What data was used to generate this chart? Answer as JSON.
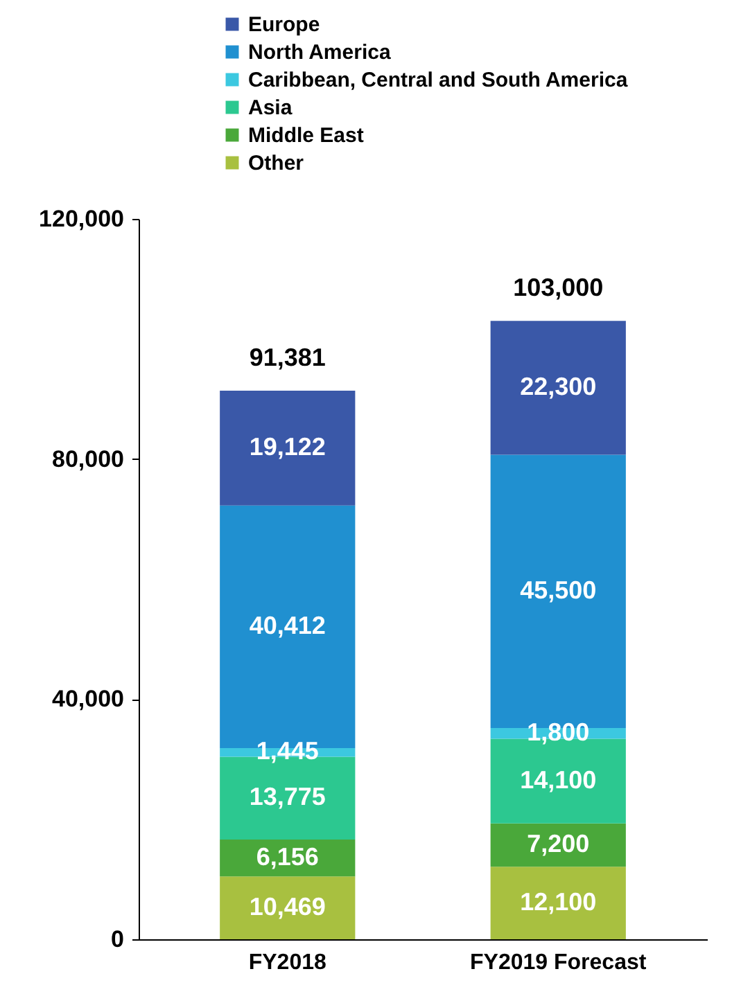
{
  "chart_data": {
    "type": "bar",
    "stacked": true,
    "categories": [
      "FY2018",
      "FY2019 Forecast"
    ],
    "series": [
      {
        "name": "Other",
        "color": "#a8c040",
        "values": [
          10469,
          12100
        ],
        "value_labels": [
          "10,469",
          "12,100"
        ]
      },
      {
        "name": "Middle East",
        "color": "#4aa83a",
        "values": [
          6156,
          7200
        ],
        "value_labels": [
          "6,156",
          "7,200"
        ]
      },
      {
        "name": "Asia",
        "color": "#2cc890",
        "values": [
          13775,
          14100
        ],
        "value_labels": [
          "13,775",
          "14,100"
        ]
      },
      {
        "name": "Caribbean, Central and South America",
        "color": "#3cc8e0",
        "values": [
          1445,
          1800
        ],
        "value_labels": [
          "1,445",
          "1,800"
        ]
      },
      {
        "name": "North America",
        "color": "#2090d0",
        "values": [
          40412,
          45500
        ],
        "value_labels": [
          "40,412",
          "45,500"
        ]
      },
      {
        "name": "Europe",
        "color": "#3a58a8",
        "values": [
          19122,
          22300
        ],
        "value_labels": [
          "19,122",
          "22,300"
        ]
      }
    ],
    "ylim": [
      0,
      120000
    ],
    "yticks": [
      0,
      {
        "value": 40000,
        "label": "40,000"
      },
      {
        "value": 80000,
        "label": "80,000"
      },
      {
        "value": 120000,
        "label": "120,000"
      }
    ],
    "totals": [
      "91,381",
      "103,000"
    ],
    "legend": "top left"
  }
}
